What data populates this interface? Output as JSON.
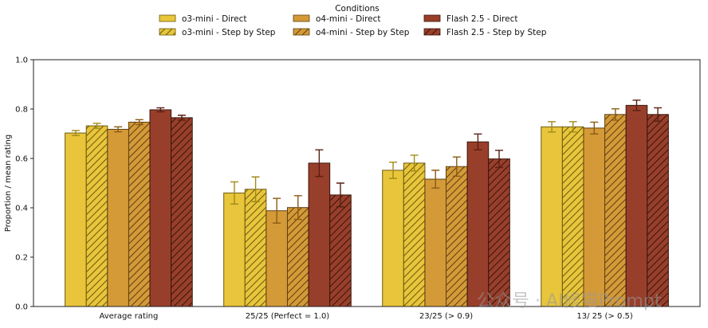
{
  "chart_data": {
    "type": "bar",
    "title": "",
    "xlabel": "",
    "ylabel": "Proportion / mean rating",
    "ylim": [
      0,
      1.0
    ],
    "yticks": [
      "0.0",
      "0.2",
      "0.4",
      "0.6",
      "0.8",
      "1.0"
    ],
    "categories": [
      "Average rating",
      "25/25 (Perfect = 1.0)",
      "23/25 (> 0.9)",
      "13/ 25 (> 0.5)"
    ],
    "legend": {
      "title": "Conditions",
      "placement": "top-center"
    },
    "grid": false,
    "series": [
      {
        "name": "o3-mini - Direct",
        "color": "#e8c53a",
        "hatch": false,
        "values": [
          0.703,
          0.46,
          0.552,
          0.728
        ],
        "errors": [
          0.01,
          0.045,
          0.033,
          0.021
        ]
      },
      {
        "name": "o3-mini - Step by Step",
        "color": "#e8c53a",
        "hatch": true,
        "values": [
          0.732,
          0.475,
          0.581,
          0.728
        ],
        "errors": [
          0.01,
          0.05,
          0.032,
          0.021
        ]
      },
      {
        "name": "o4-mini - Direct",
        "color": "#d49a38",
        "hatch": false,
        "values": [
          0.718,
          0.388,
          0.516,
          0.723
        ],
        "errors": [
          0.01,
          0.05,
          0.036,
          0.024
        ]
      },
      {
        "name": "o4-mini - Step by Step",
        "color": "#d49a38",
        "hatch": true,
        "values": [
          0.747,
          0.401,
          0.567,
          0.778
        ],
        "errors": [
          0.01,
          0.048,
          0.039,
          0.023
        ]
      },
      {
        "name": "Flash 2.5 - Direct",
        "color": "#983f2b",
        "hatch": false,
        "values": [
          0.797,
          0.581,
          0.667,
          0.815
        ],
        "errors": [
          0.008,
          0.054,
          0.032,
          0.021
        ]
      },
      {
        "name": "Flash 2.5 - Step by Step",
        "color": "#983f2b",
        "hatch": true,
        "values": [
          0.765,
          0.452,
          0.598,
          0.778
        ],
        "errors": [
          0.01,
          0.048,
          0.035,
          0.027
        ]
      }
    ]
  },
  "watermark": "公众号 · AI修猫Prompt"
}
